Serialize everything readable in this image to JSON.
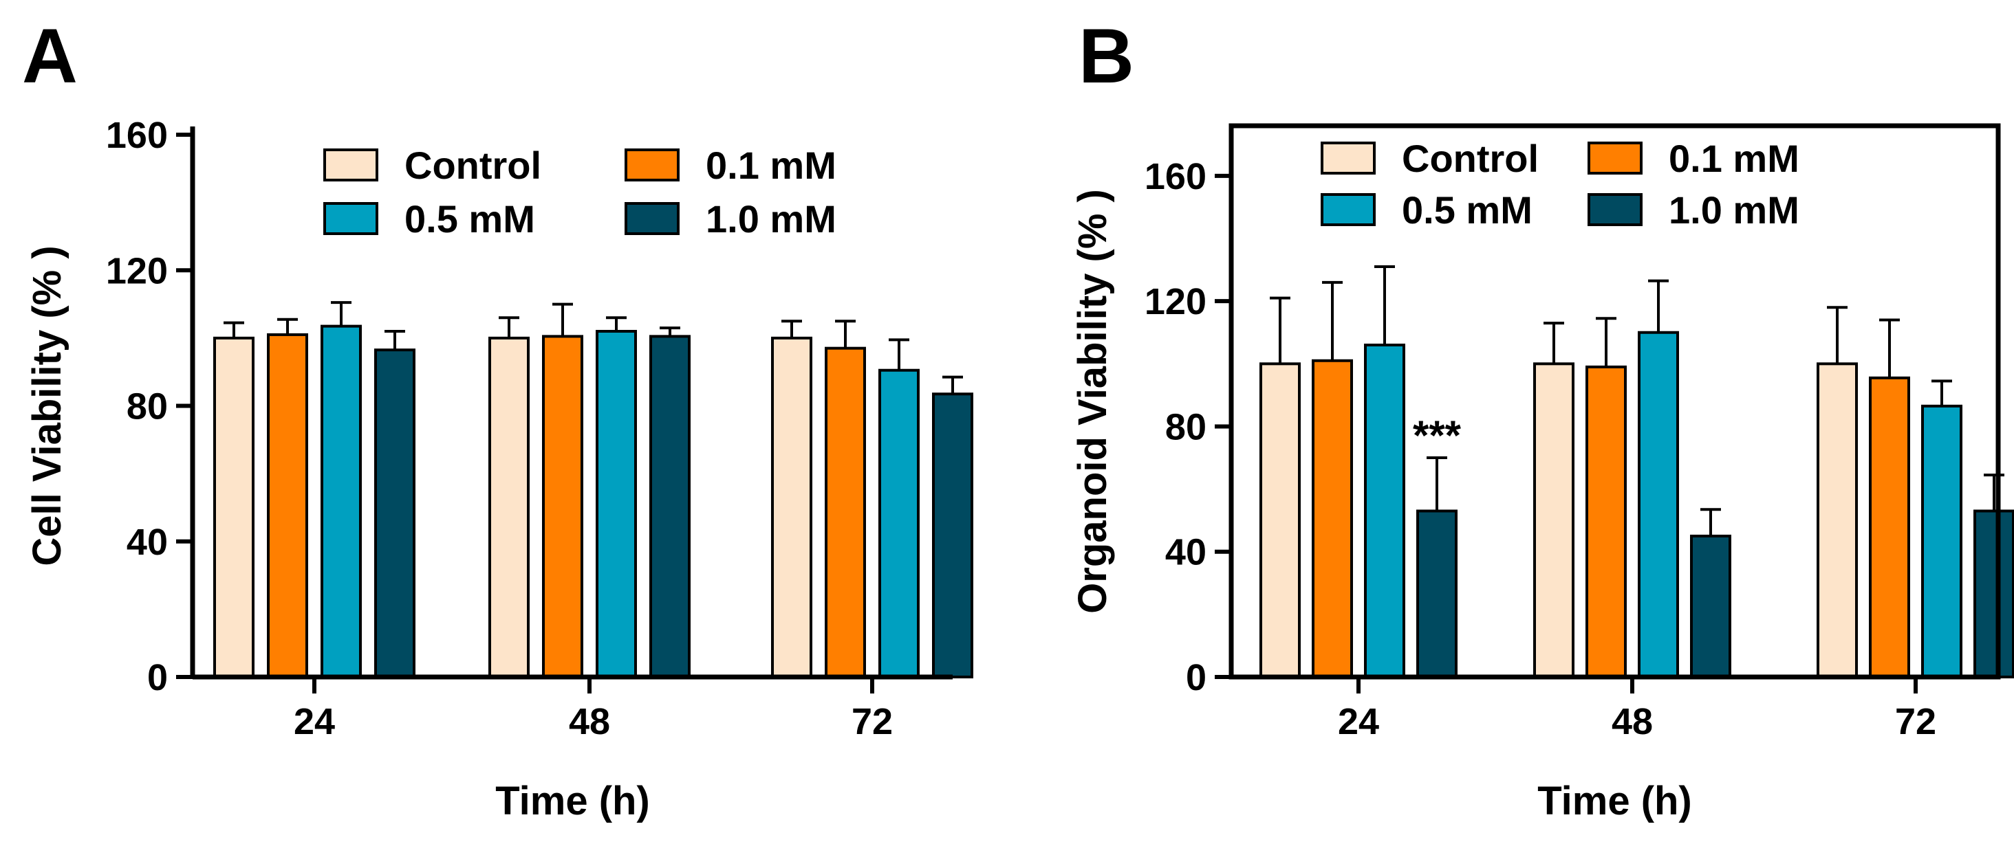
{
  "colors": {
    "control": "#FDE4CA",
    "mM_0_1": "#FF7F00",
    "mM_0_5": "#00A0C0",
    "mM_1_0": "#004A60",
    "axis": "#000000"
  },
  "chart_data": [
    {
      "type": "bar",
      "panel_label": "A",
      "title": "",
      "xlabel": "Time (h)",
      "ylabel": "Cell Viability (% )",
      "categories": [
        "24",
        "48",
        "72"
      ],
      "ylim": [
        0,
        160
      ],
      "yticks": [
        0,
        40,
        80,
        120,
        160
      ],
      "frame": "open",
      "legend_position": "top",
      "series": [
        {
          "name": "Control",
          "color_key": "control",
          "values": [
            100,
            100,
            100
          ],
          "errors": [
            4.5,
            6,
            5
          ]
        },
        {
          "name": "0.1 mM",
          "color_key": "mM_0_1",
          "values": [
            101,
            100.5,
            97
          ],
          "errors": [
            4.5,
            9.5,
            8
          ]
        },
        {
          "name": "0.5 mM",
          "color_key": "mM_0_5",
          "values": [
            103.5,
            102,
            90.5
          ],
          "errors": [
            7,
            4,
            9
          ]
        },
        {
          "name": "1.0 mM",
          "color_key": "mM_1_0",
          "values": [
            96.5,
            100.5,
            83.5
          ],
          "errors": [
            5.5,
            2.5,
            5
          ]
        }
      ],
      "annotations": []
    },
    {
      "type": "bar",
      "panel_label": "B",
      "title": "",
      "xlabel": "Time (h)",
      "ylabel": "Organoid Viability (% )",
      "categories": [
        "24",
        "48",
        "72"
      ],
      "ylim": [
        0,
        176
      ],
      "yticks": [
        0,
        40,
        80,
        120,
        160
      ],
      "frame": "box",
      "legend_position": "top",
      "series": [
        {
          "name": "Control",
          "color_key": "control",
          "values": [
            100,
            100,
            100
          ],
          "errors": [
            21,
            13,
            18
          ]
        },
        {
          "name": "0.1 mM",
          "color_key": "mM_0_1",
          "values": [
            101,
            99,
            95.5
          ],
          "errors": [
            25,
            15.5,
            18.5
          ]
        },
        {
          "name": "0.5 mM",
          "color_key": "mM_0_5",
          "values": [
            106,
            110,
            86.5
          ],
          "errors": [
            25,
            16.5,
            8
          ]
        },
        {
          "name": "1.0 mM",
          "color_key": "mM_1_0",
          "values": [
            53,
            45,
            53
          ],
          "errors": [
            17,
            8.5,
            11.5
          ]
        }
      ],
      "annotations": [
        {
          "text": "***",
          "category_index": 0,
          "series_index": 3
        }
      ]
    }
  ]
}
